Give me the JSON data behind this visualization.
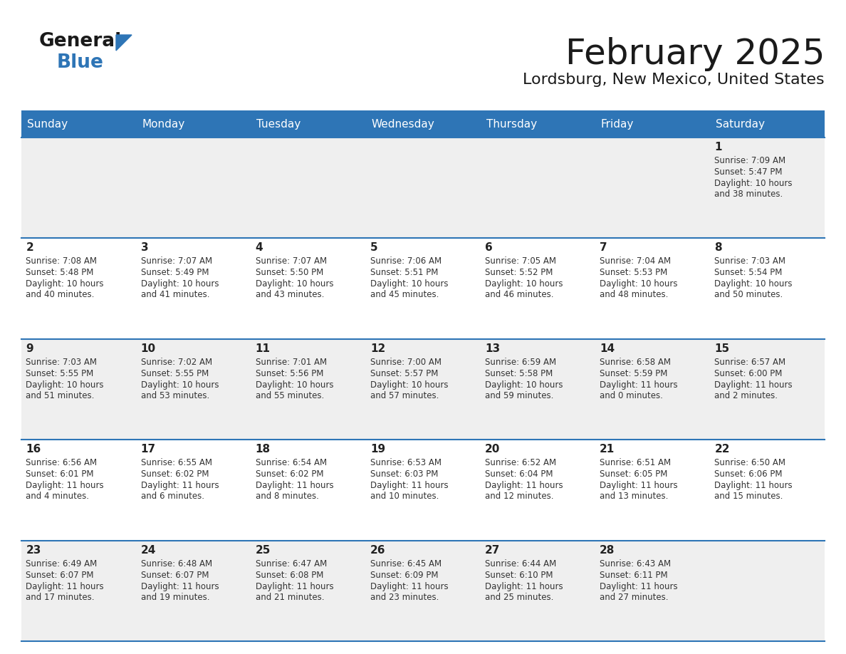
{
  "title": "February 2025",
  "subtitle": "Lordsburg, New Mexico, United States",
  "header_bg": "#2E75B6",
  "header_text": "#FFFFFF",
  "cell_bg_odd": "#EFEFEF",
  "cell_bg_even": "#FFFFFF",
  "day_names": [
    "Sunday",
    "Monday",
    "Tuesday",
    "Wednesday",
    "Thursday",
    "Friday",
    "Saturday"
  ],
  "separator_color": "#2E75B6",
  "day_number_color": "#222222",
  "cell_text_color": "#333333",
  "logo_general_color": "#1a1a1a",
  "logo_blue_color": "#2E75B6",
  "logo_triangle_color": "#2E75B6",
  "calendar_data": [
    {
      "day": 1,
      "col": 6,
      "row": 0,
      "sunrise": "7:09 AM",
      "sunset": "5:47 PM",
      "daylight": "10 hours and 38 minutes."
    },
    {
      "day": 2,
      "col": 0,
      "row": 1,
      "sunrise": "7:08 AM",
      "sunset": "5:48 PM",
      "daylight": "10 hours and 40 minutes."
    },
    {
      "day": 3,
      "col": 1,
      "row": 1,
      "sunrise": "7:07 AM",
      "sunset": "5:49 PM",
      "daylight": "10 hours and 41 minutes."
    },
    {
      "day": 4,
      "col": 2,
      "row": 1,
      "sunrise": "7:07 AM",
      "sunset": "5:50 PM",
      "daylight": "10 hours and 43 minutes."
    },
    {
      "day": 5,
      "col": 3,
      "row": 1,
      "sunrise": "7:06 AM",
      "sunset": "5:51 PM",
      "daylight": "10 hours and 45 minutes."
    },
    {
      "day": 6,
      "col": 4,
      "row": 1,
      "sunrise": "7:05 AM",
      "sunset": "5:52 PM",
      "daylight": "10 hours and 46 minutes."
    },
    {
      "day": 7,
      "col": 5,
      "row": 1,
      "sunrise": "7:04 AM",
      "sunset": "5:53 PM",
      "daylight": "10 hours and 48 minutes."
    },
    {
      "day": 8,
      "col": 6,
      "row": 1,
      "sunrise": "7:03 AM",
      "sunset": "5:54 PM",
      "daylight": "10 hours and 50 minutes."
    },
    {
      "day": 9,
      "col": 0,
      "row": 2,
      "sunrise": "7:03 AM",
      "sunset": "5:55 PM",
      "daylight": "10 hours and 51 minutes."
    },
    {
      "day": 10,
      "col": 1,
      "row": 2,
      "sunrise": "7:02 AM",
      "sunset": "5:55 PM",
      "daylight": "10 hours and 53 minutes."
    },
    {
      "day": 11,
      "col": 2,
      "row": 2,
      "sunrise": "7:01 AM",
      "sunset": "5:56 PM",
      "daylight": "10 hours and 55 minutes."
    },
    {
      "day": 12,
      "col": 3,
      "row": 2,
      "sunrise": "7:00 AM",
      "sunset": "5:57 PM",
      "daylight": "10 hours and 57 minutes."
    },
    {
      "day": 13,
      "col": 4,
      "row": 2,
      "sunrise": "6:59 AM",
      "sunset": "5:58 PM",
      "daylight": "10 hours and 59 minutes."
    },
    {
      "day": 14,
      "col": 5,
      "row": 2,
      "sunrise": "6:58 AM",
      "sunset": "5:59 PM",
      "daylight": "11 hours and 0 minutes."
    },
    {
      "day": 15,
      "col": 6,
      "row": 2,
      "sunrise": "6:57 AM",
      "sunset": "6:00 PM",
      "daylight": "11 hours and 2 minutes."
    },
    {
      "day": 16,
      "col": 0,
      "row": 3,
      "sunrise": "6:56 AM",
      "sunset": "6:01 PM",
      "daylight": "11 hours and 4 minutes."
    },
    {
      "day": 17,
      "col": 1,
      "row": 3,
      "sunrise": "6:55 AM",
      "sunset": "6:02 PM",
      "daylight": "11 hours and 6 minutes."
    },
    {
      "day": 18,
      "col": 2,
      "row": 3,
      "sunrise": "6:54 AM",
      "sunset": "6:02 PM",
      "daylight": "11 hours and 8 minutes."
    },
    {
      "day": 19,
      "col": 3,
      "row": 3,
      "sunrise": "6:53 AM",
      "sunset": "6:03 PM",
      "daylight": "11 hours and 10 minutes."
    },
    {
      "day": 20,
      "col": 4,
      "row": 3,
      "sunrise": "6:52 AM",
      "sunset": "6:04 PM",
      "daylight": "11 hours and 12 minutes."
    },
    {
      "day": 21,
      "col": 5,
      "row": 3,
      "sunrise": "6:51 AM",
      "sunset": "6:05 PM",
      "daylight": "11 hours and 13 minutes."
    },
    {
      "day": 22,
      "col": 6,
      "row": 3,
      "sunrise": "6:50 AM",
      "sunset": "6:06 PM",
      "daylight": "11 hours and 15 minutes."
    },
    {
      "day": 23,
      "col": 0,
      "row": 4,
      "sunrise": "6:49 AM",
      "sunset": "6:07 PM",
      "daylight": "11 hours and 17 minutes."
    },
    {
      "day": 24,
      "col": 1,
      "row": 4,
      "sunrise": "6:48 AM",
      "sunset": "6:07 PM",
      "daylight": "11 hours and 19 minutes."
    },
    {
      "day": 25,
      "col": 2,
      "row": 4,
      "sunrise": "6:47 AM",
      "sunset": "6:08 PM",
      "daylight": "11 hours and 21 minutes."
    },
    {
      "day": 26,
      "col": 3,
      "row": 4,
      "sunrise": "6:45 AM",
      "sunset": "6:09 PM",
      "daylight": "11 hours and 23 minutes."
    },
    {
      "day": 27,
      "col": 4,
      "row": 4,
      "sunrise": "6:44 AM",
      "sunset": "6:10 PM",
      "daylight": "11 hours and 25 minutes."
    },
    {
      "day": 28,
      "col": 5,
      "row": 4,
      "sunrise": "6:43 AM",
      "sunset": "6:11 PM",
      "daylight": "11 hours and 27 minutes."
    }
  ],
  "num_rows": 5,
  "num_cols": 7
}
